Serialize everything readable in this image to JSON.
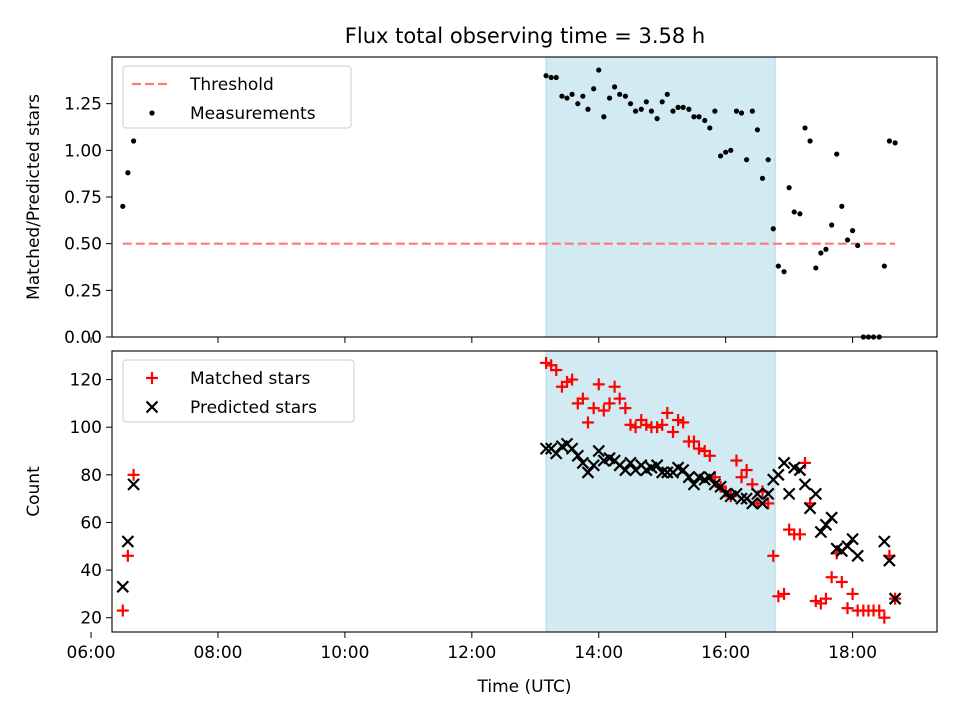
{
  "title": "Flux total observing time = 3.58 h",
  "colors": {
    "threshold": "#ff7777",
    "matched": "#ff0000",
    "predicted": "#000000",
    "measurements": "#000000",
    "shade": "#add8e6"
  },
  "chart_data": [
    {
      "type": "scatter",
      "ylabel": "Matched/Predicted stars",
      "xlim": [
        6.33,
        19.33
      ],
      "ylim": [
        0,
        1.5
      ],
      "y_ticks": [
        0.0,
        0.25,
        0.5,
        0.75,
        1.0,
        1.25
      ],
      "y_tick_labels": [
        "0.00",
        "0.25",
        "0.50",
        "0.75",
        "1.00",
        "1.25"
      ],
      "shaded_interval": [
        13.17,
        16.78
      ],
      "legend": {
        "location": "upper left",
        "entries": [
          "Threshold",
          "Measurements"
        ]
      },
      "threshold": {
        "name": "Threshold",
        "y": 0.5,
        "x_range": [
          6.5,
          18.67
        ],
        "style": "dashed"
      },
      "series": [
        {
          "name": "Measurements",
          "marker": "dot",
          "x": [
            6.5,
            6.58,
            6.67,
            13.17,
            13.25,
            13.33,
            13.42,
            13.5,
            13.58,
            13.67,
            13.75,
            13.83,
            13.92,
            14.0,
            14.08,
            14.17,
            14.25,
            14.33,
            14.42,
            14.5,
            14.58,
            14.67,
            14.75,
            14.83,
            14.92,
            15.0,
            15.08,
            15.17,
            15.25,
            15.33,
            15.42,
            15.5,
            15.58,
            15.67,
            15.75,
            15.83,
            15.92,
            16.0,
            16.08,
            16.17,
            16.25,
            16.33,
            16.42,
            16.5,
            16.58,
            16.67,
            16.75,
            16.83,
            16.92,
            17.0,
            17.08,
            17.17,
            17.25,
            17.33,
            17.42,
            17.5,
            17.58,
            17.67,
            17.75,
            17.83,
            17.92,
            18.0,
            18.08,
            18.17,
            18.25,
            18.33,
            18.42,
            18.5,
            18.58,
            18.67
          ],
          "y": [
            0.7,
            0.88,
            1.05,
            1.4,
            1.39,
            1.39,
            1.29,
            1.28,
            1.3,
            1.25,
            1.29,
            1.22,
            1.33,
            1.43,
            1.18,
            1.28,
            1.34,
            1.3,
            1.29,
            1.25,
            1.21,
            1.22,
            1.26,
            1.21,
            1.17,
            1.26,
            1.3,
            1.21,
            1.23,
            1.23,
            1.22,
            1.18,
            1.18,
            1.16,
            1.12,
            1.21,
            0.97,
            0.99,
            1.0,
            1.21,
            1.2,
            0.95,
            1.21,
            1.11,
            0.85,
            0.95,
            0.58,
            0.38,
            0.35,
            0.8,
            0.67,
            0.66,
            1.12,
            1.05,
            0.37,
            0.45,
            0.47,
            0.6,
            0.98,
            0.7,
            0.52,
            0.57,
            0.49,
            0.0,
            0.0,
            0.0,
            0.0,
            0.38,
            1.05,
            1.04
          ]
        }
      ]
    },
    {
      "type": "scatter",
      "xlabel": "Time (UTC)",
      "ylabel": "Count",
      "xlim": [
        6.33,
        19.33
      ],
      "ylim": [
        14,
        132
      ],
      "x_ticks": [
        6,
        8,
        10,
        12,
        14,
        16,
        18
      ],
      "x_tick_labels": [
        "06:00",
        "08:00",
        "10:00",
        "12:00",
        "14:00",
        "16:00",
        "18:00"
      ],
      "y_ticks": [
        20,
        40,
        60,
        80,
        100,
        120
      ],
      "y_tick_labels": [
        "20",
        "40",
        "60",
        "80",
        "100",
        "120"
      ],
      "shaded_interval": [
        13.17,
        16.78
      ],
      "legend": {
        "location": "upper left",
        "entries": [
          "Matched stars",
          "Predicted stars"
        ]
      },
      "series": [
        {
          "name": "Matched stars",
          "marker": "plus",
          "x": [
            6.5,
            6.58,
            6.67,
            13.17,
            13.25,
            13.33,
            13.42,
            13.5,
            13.58,
            13.67,
            13.75,
            13.83,
            13.92,
            14.0,
            14.08,
            14.17,
            14.25,
            14.33,
            14.42,
            14.5,
            14.58,
            14.67,
            14.75,
            14.83,
            14.92,
            15.0,
            15.08,
            15.17,
            15.25,
            15.33,
            15.42,
            15.5,
            15.58,
            15.67,
            15.75,
            15.83,
            15.92,
            16.0,
            16.08,
            16.17,
            16.25,
            16.33,
            16.42,
            16.5,
            16.58,
            16.67,
            16.75,
            16.83,
            16.92,
            17.0,
            17.08,
            17.17,
            17.25,
            17.33,
            17.42,
            17.5,
            17.58,
            17.67,
            17.75,
            17.83,
            17.92,
            18.0,
            18.08,
            18.17,
            18.25,
            18.33,
            18.42,
            18.5,
            18.58,
            18.67
          ],
          "y": [
            23,
            46,
            80,
            127,
            126,
            124,
            117,
            119,
            120,
            110,
            112,
            102,
            108,
            118,
            107,
            110,
            117,
            112,
            108,
            101,
            100,
            103,
            101,
            100,
            100,
            101,
            106,
            98,
            103,
            102,
            94,
            94,
            91,
            90,
            88,
            79,
            75,
            73,
            71,
            86,
            79,
            82,
            76,
            68,
            73,
            68,
            46,
            29,
            30,
            57,
            55,
            55,
            85,
            68,
            27,
            26,
            28,
            37,
            47,
            35,
            24,
            30,
            23,
            23,
            23,
            23,
            23,
            20,
            46,
            28
          ]
        },
        {
          "name": "Predicted stars",
          "marker": "x",
          "x": [
            6.5,
            6.58,
            6.67,
            13.17,
            13.25,
            13.33,
            13.42,
            13.5,
            13.58,
            13.67,
            13.75,
            13.83,
            13.92,
            14.0,
            14.08,
            14.17,
            14.25,
            14.33,
            14.42,
            14.5,
            14.58,
            14.67,
            14.75,
            14.83,
            14.92,
            15.0,
            15.08,
            15.17,
            15.25,
            15.33,
            15.42,
            15.5,
            15.58,
            15.67,
            15.75,
            15.83,
            15.92,
            16.0,
            16.08,
            16.17,
            16.25,
            16.33,
            16.42,
            16.5,
            16.58,
            16.67,
            16.75,
            16.83,
            16.92,
            17.0,
            17.08,
            17.17,
            17.25,
            17.33,
            17.42,
            17.5,
            17.58,
            17.67,
            17.75,
            17.83,
            17.92,
            18.0,
            18.08,
            18.5,
            18.58,
            18.67
          ],
          "y": [
            33,
            52,
            76,
            91,
            91,
            89,
            92,
            93,
            91,
            88,
            85,
            81,
            84,
            90,
            86,
            87,
            86,
            84,
            82,
            85,
            82,
            84,
            82,
            83,
            84,
            81,
            81,
            81,
            83,
            82,
            79,
            76,
            79,
            78,
            79,
            76,
            75,
            72,
            71,
            72,
            70,
            70,
            68,
            72,
            68,
            72,
            78,
            80,
            85,
            72,
            83,
            82,
            76,
            66,
            72,
            56,
            59,
            62,
            49,
            48,
            50,
            53,
            46,
            52,
            44,
            28
          ]
        }
      ]
    }
  ]
}
